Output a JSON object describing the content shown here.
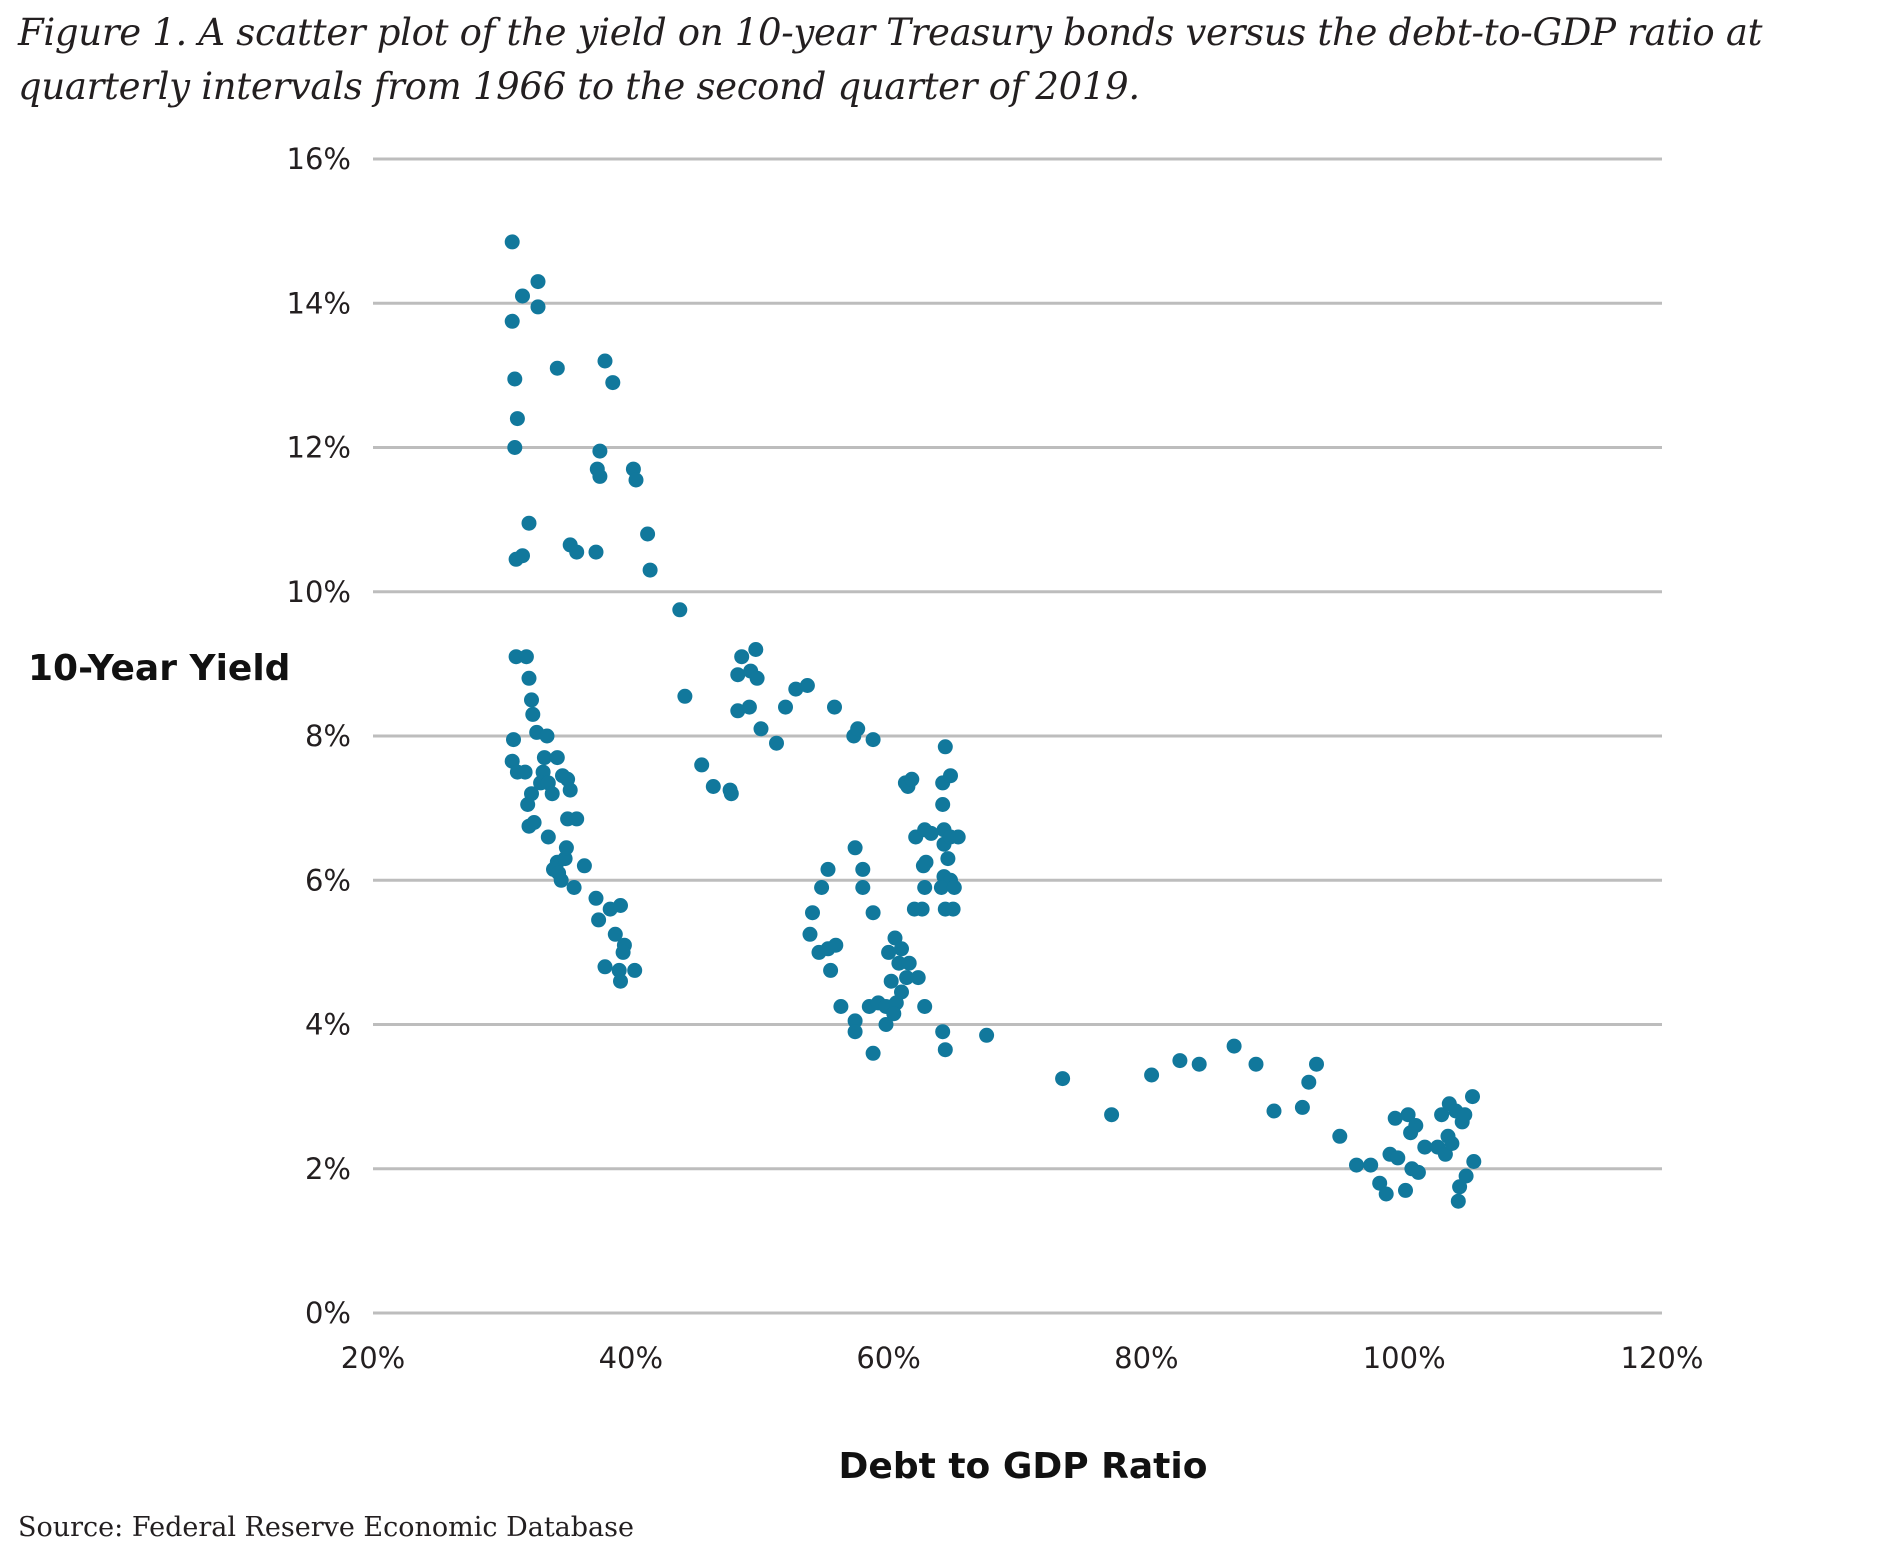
{
  "caption": "Figure 1. A scatter plot of the yield on 10-year Treasury bonds versus the debt-to-GDP ratio at quarterly intervals from 1966 to the second quarter of 2019.",
  "source": "Source: Federal Reserve Economic Database",
  "colors": {
    "points": "#11789c",
    "grid": "#bdbdbd",
    "text": "#231f20"
  },
  "chart_data": {
    "type": "scatter",
    "title": "",
    "xlabel": "Debt to GDP Ratio",
    "ylabel": "10-Year Yield",
    "xlim": [
      20,
      120
    ],
    "ylim": [
      0,
      16
    ],
    "x_ticks": [
      20,
      40,
      60,
      80,
      100,
      120
    ],
    "x_tick_labels": [
      "20%",
      "40%",
      "60%",
      "80%",
      "100%",
      "120%"
    ],
    "y_ticks": [
      0,
      2,
      4,
      6,
      8,
      10,
      12,
      14,
      16
    ],
    "y_tick_labels": [
      "0%",
      "2%",
      "4%",
      "6%",
      "8%",
      "10%",
      "12%",
      "14%",
      "16%"
    ],
    "grid": "horizontal",
    "legend": "none",
    "points": [
      [
        30.8,
        14.85
      ],
      [
        31.6,
        14.1
      ],
      [
        32.8,
        14.3
      ],
      [
        32.8,
        13.95
      ],
      [
        30.8,
        13.75
      ],
      [
        31.0,
        12.95
      ],
      [
        31.2,
        12.4
      ],
      [
        31.0,
        12.0
      ],
      [
        34.3,
        13.1
      ],
      [
        38.0,
        13.2
      ],
      [
        38.6,
        12.9
      ],
      [
        37.6,
        11.95
      ],
      [
        37.4,
        11.7
      ],
      [
        37.6,
        11.6
      ],
      [
        40.2,
        11.7
      ],
      [
        40.4,
        11.55
      ],
      [
        32.1,
        10.95
      ],
      [
        31.1,
        10.45
      ],
      [
        31.6,
        10.5
      ],
      [
        35.3,
        10.65
      ],
      [
        35.8,
        10.55
      ],
      [
        37.3,
        10.55
      ],
      [
        41.3,
        10.8
      ],
      [
        41.5,
        10.3
      ],
      [
        43.8,
        9.75
      ],
      [
        31.1,
        9.1
      ],
      [
        31.9,
        9.1
      ],
      [
        32.1,
        8.8
      ],
      [
        32.3,
        8.5
      ],
      [
        32.4,
        8.3
      ],
      [
        32.7,
        8.05
      ],
      [
        33.5,
        8.0
      ],
      [
        30.9,
        7.95
      ],
      [
        33.3,
        7.7
      ],
      [
        34.3,
        7.7
      ],
      [
        30.8,
        7.65
      ],
      [
        31.2,
        7.5
      ],
      [
        31.8,
        7.5
      ],
      [
        33.2,
        7.5
      ],
      [
        33.0,
        7.35
      ],
      [
        33.6,
        7.35
      ],
      [
        34.7,
        7.45
      ],
      [
        35.1,
        7.4
      ],
      [
        35.3,
        7.25
      ],
      [
        32.3,
        7.2
      ],
      [
        32.0,
        7.05
      ],
      [
        33.9,
        7.2
      ],
      [
        35.1,
        6.85
      ],
      [
        35.8,
        6.85
      ],
      [
        32.1,
        6.75
      ],
      [
        32.5,
        6.8
      ],
      [
        33.6,
        6.6
      ],
      [
        34.3,
        6.25
      ],
      [
        34.9,
        6.3
      ],
      [
        34.0,
        6.15
      ],
      [
        34.4,
        6.1
      ],
      [
        35.0,
        6.45
      ],
      [
        34.6,
        6.0
      ],
      [
        35.6,
        5.9
      ],
      [
        36.4,
        6.2
      ],
      [
        37.3,
        5.75
      ],
      [
        37.5,
        5.45
      ],
      [
        38.4,
        5.6
      ],
      [
        39.2,
        5.65
      ],
      [
        38.8,
        5.25
      ],
      [
        39.5,
        5.1
      ],
      [
        39.4,
        5.0
      ],
      [
        38.0,
        4.8
      ],
      [
        39.1,
        4.75
      ],
      [
        40.3,
        4.75
      ],
      [
        39.2,
        4.6
      ],
      [
        44.2,
        8.55
      ],
      [
        45.5,
        7.6
      ],
      [
        46.4,
        7.3
      ],
      [
        47.7,
        7.25
      ],
      [
        47.8,
        7.2
      ],
      [
        48.3,
        8.85
      ],
      [
        48.6,
        9.1
      ],
      [
        49.7,
        9.2
      ],
      [
        49.3,
        8.9
      ],
      [
        49.8,
        8.8
      ],
      [
        48.3,
        8.35
      ],
      [
        49.2,
        8.4
      ],
      [
        50.1,
        8.1
      ],
      [
        51.3,
        7.9
      ],
      [
        52.0,
        8.4
      ],
      [
        52.8,
        8.65
      ],
      [
        53.7,
        8.7
      ],
      [
        55.8,
        8.4
      ],
      [
        57.3,
        8.0
      ],
      [
        57.6,
        8.1
      ],
      [
        58.8,
        7.95
      ],
      [
        61.3,
        7.35
      ],
      [
        61.5,
        7.3
      ],
      [
        61.8,
        7.4
      ],
      [
        64.4,
        7.85
      ],
      [
        64.2,
        7.35
      ],
      [
        64.8,
        7.45
      ],
      [
        64.2,
        7.05
      ],
      [
        62.1,
        6.6
      ],
      [
        62.8,
        6.7
      ],
      [
        63.3,
        6.65
      ],
      [
        64.3,
        6.7
      ],
      [
        64.3,
        6.5
      ],
      [
        64.8,
        6.6
      ],
      [
        65.4,
        6.6
      ],
      [
        57.4,
        6.45
      ],
      [
        55.3,
        6.15
      ],
      [
        58.0,
        6.15
      ],
      [
        62.7,
        6.2
      ],
      [
        62.9,
        6.25
      ],
      [
        64.6,
        6.3
      ],
      [
        64.3,
        6.05
      ],
      [
        64.8,
        6.0
      ],
      [
        58.0,
        5.9
      ],
      [
        54.8,
        5.9
      ],
      [
        62.8,
        5.9
      ],
      [
        64.1,
        5.9
      ],
      [
        65.1,
        5.9
      ],
      [
        54.1,
        5.55
      ],
      [
        58.8,
        5.55
      ],
      [
        62.0,
        5.6
      ],
      [
        62.6,
        5.6
      ],
      [
        64.4,
        5.6
      ],
      [
        65.0,
        5.6
      ],
      [
        53.9,
        5.25
      ],
      [
        60.5,
        5.2
      ],
      [
        61.0,
        5.05
      ],
      [
        54.6,
        5.0
      ],
      [
        55.3,
        5.05
      ],
      [
        55.9,
        5.1
      ],
      [
        60.0,
        5.0
      ],
      [
        60.8,
        4.85
      ],
      [
        61.6,
        4.85
      ],
      [
        55.5,
        4.75
      ],
      [
        61.4,
        4.65
      ],
      [
        62.3,
        4.65
      ],
      [
        60.2,
        4.6
      ],
      [
        61.0,
        4.45
      ],
      [
        56.3,
        4.25
      ],
      [
        58.5,
        4.25
      ],
      [
        59.2,
        4.3
      ],
      [
        59.8,
        4.25
      ],
      [
        60.6,
        4.3
      ],
      [
        60.4,
        4.15
      ],
      [
        62.8,
        4.25
      ],
      [
        57.4,
        4.05
      ],
      [
        59.8,
        4.0
      ],
      [
        57.4,
        3.9
      ],
      [
        64.2,
        3.9
      ],
      [
        58.8,
        3.6
      ],
      [
        64.4,
        3.65
      ],
      [
        67.6,
        3.85
      ],
      [
        73.5,
        3.25
      ],
      [
        77.3,
        2.75
      ],
      [
        80.4,
        3.3
      ],
      [
        82.6,
        3.5
      ],
      [
        84.1,
        3.45
      ],
      [
        86.8,
        3.7
      ],
      [
        88.5,
        3.45
      ],
      [
        89.9,
        2.8
      ],
      [
        92.1,
        2.85
      ],
      [
        92.6,
        3.2
      ],
      [
        93.2,
        3.45
      ],
      [
        95.0,
        2.45
      ],
      [
        96.3,
        2.05
      ],
      [
        97.4,
        2.05
      ],
      [
        98.1,
        1.8
      ],
      [
        98.6,
        1.65
      ],
      [
        98.9,
        2.2
      ],
      [
        99.5,
        2.15
      ],
      [
        99.3,
        2.7
      ],
      [
        100.3,
        2.75
      ],
      [
        100.5,
        2.5
      ],
      [
        100.9,
        2.6
      ],
      [
        100.1,
        1.7
      ],
      [
        100.6,
        2.0
      ],
      [
        101.1,
        1.95
      ],
      [
        101.6,
        2.3
      ],
      [
        102.6,
        2.3
      ],
      [
        102.9,
        2.75
      ],
      [
        103.2,
        2.2
      ],
      [
        103.4,
        2.45
      ],
      [
        103.5,
        2.9
      ],
      [
        103.7,
        2.35
      ],
      [
        104.0,
        2.8
      ],
      [
        104.5,
        2.65
      ],
      [
        104.7,
        2.75
      ],
      [
        104.3,
        1.75
      ],
      [
        104.2,
        1.55
      ],
      [
        104.8,
        1.9
      ],
      [
        105.3,
        3.0
      ],
      [
        105.4,
        2.1
      ]
    ]
  }
}
